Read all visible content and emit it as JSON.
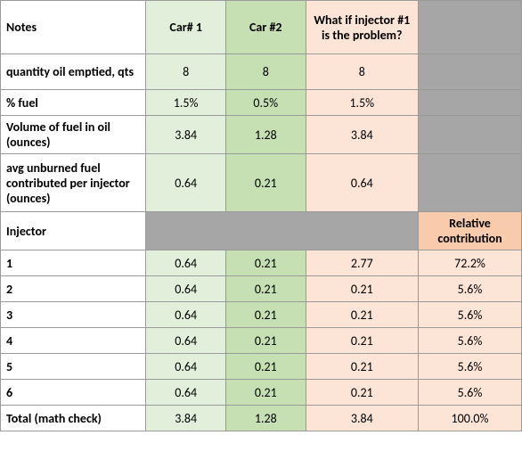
{
  "headers": {
    "notes": "Notes",
    "car1": "Car# 1",
    "car2": "Car #2",
    "whatif": "What if injector #1 is the problem?",
    "injector": "Injector",
    "relative": "Relative contribution"
  },
  "rows": {
    "qty": {
      "label": "quantity oil emptied, qts",
      "car1": "8",
      "car2": "8",
      "whatif": "8"
    },
    "pctfuel": {
      "label": "% fuel",
      "car1": "1.5%",
      "car2": "0.5%",
      "whatif": "1.5%"
    },
    "volfuel": {
      "label": "Volume of fuel in oil (ounces)",
      "car1": "3.84",
      "car2": "1.28",
      "whatif": "3.84"
    },
    "avgunburned": {
      "label": "avg unburned fuel contributed per injector (ounces)",
      "car1": "0.64",
      "car2": "0.21",
      "whatif": "0.64"
    }
  },
  "inj": {
    "1": {
      "label": "1",
      "car1": "0.64",
      "car2": "0.21",
      "whatif": "2.77",
      "rel": "72.2%"
    },
    "2": {
      "label": "2",
      "car1": "0.64",
      "car2": "0.21",
      "whatif": "0.21",
      "rel": "5.6%"
    },
    "3": {
      "label": "3",
      "car1": "0.64",
      "car2": "0.21",
      "whatif": "0.21",
      "rel": "5.6%"
    },
    "4": {
      "label": "4",
      "car1": "0.64",
      "car2": "0.21",
      "whatif": "0.21",
      "rel": "5.6%"
    },
    "5": {
      "label": "5",
      "car1": "0.64",
      "car2": "0.21",
      "whatif": "0.21",
      "rel": "5.6%"
    },
    "6": {
      "label": "6",
      "car1": "0.64",
      "car2": "0.21",
      "whatif": "0.21",
      "rel": "5.6%"
    }
  },
  "total": {
    "label": "Total (math check)",
    "car1": "3.84",
    "car2": "1.28",
    "whatif": "3.84",
    "rel": "100.0%"
  }
}
